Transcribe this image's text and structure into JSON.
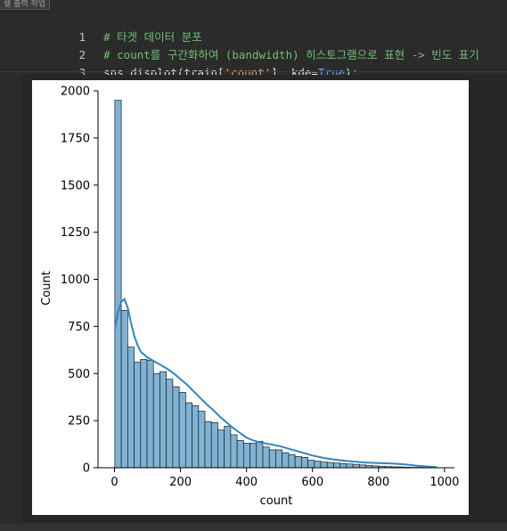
{
  "cell_tag": "셀 출력 작업",
  "code_lines": [
    {
      "num": "1",
      "parts": [
        {
          "t": "# 타겟 데이터 분포",
          "c": "cm"
        }
      ]
    },
    {
      "num": "2",
      "parts": [
        {
          "t": "# count를 구간화하여 (bandwidth) 히스토그램으로 표현 -> 빈도 표기",
          "c": "cm"
        }
      ]
    },
    {
      "num": "3",
      "parts": [
        {
          "t": "sns.displot(train[",
          "c": "fn"
        },
        {
          "t": "'count'",
          "c": "str"
        },
        {
          "t": "], kde=",
          "c": "fn"
        },
        {
          "t": "True",
          "c": "kw"
        },
        {
          "t": ");",
          "c": "fn"
        }
      ]
    }
  ],
  "chart_data": {
    "type": "bar",
    "subtype": "histogram_with_kde",
    "title": "",
    "xlabel": "count",
    "ylabel": "Count",
    "xlim": [
      -50,
      1030
    ],
    "ylim": [
      0,
      2000
    ],
    "xticks": [
      0,
      200,
      400,
      600,
      800,
      1000
    ],
    "yticks": [
      0,
      250,
      500,
      750,
      1000,
      1250,
      1500,
      1750,
      2000
    ],
    "bin_start": 1,
    "bin_width": 19.5,
    "values": [
      1950,
      835,
      640,
      560,
      575,
      570,
      500,
      510,
      470,
      430,
      400,
      345,
      330,
      300,
      245,
      240,
      200,
      220,
      175,
      145,
      130,
      130,
      140,
      110,
      95,
      95,
      80,
      70,
      60,
      55,
      40,
      35,
      30,
      28,
      25,
      22,
      20,
      18,
      15,
      12,
      10,
      8,
      6,
      5,
      4,
      3,
      2,
      2,
      1,
      1
    ],
    "kde": {
      "x": [
        1,
        10,
        20,
        30,
        40,
        50,
        60,
        70,
        80,
        100,
        120,
        140,
        160,
        180,
        200,
        220,
        240,
        260,
        280,
        300,
        320,
        340,
        360,
        380,
        400,
        420,
        440,
        460,
        480,
        500,
        520,
        540,
        560,
        580,
        600,
        640,
        680,
        720,
        760,
        800,
        840,
        880,
        920,
        960,
        977
      ],
      "y": [
        735,
        820,
        880,
        895,
        850,
        770,
        700,
        650,
        615,
        585,
        565,
        545,
        525,
        500,
        470,
        440,
        405,
        370,
        335,
        305,
        270,
        240,
        210,
        185,
        160,
        145,
        135,
        128,
        122,
        115,
        105,
        95,
        85,
        75,
        65,
        50,
        40,
        33,
        28,
        25,
        22,
        18,
        10,
        5,
        3
      ]
    },
    "bar_color": "#7fb3d5",
    "kde_color": "#2e86c1",
    "grid": false,
    "legend": "none"
  }
}
